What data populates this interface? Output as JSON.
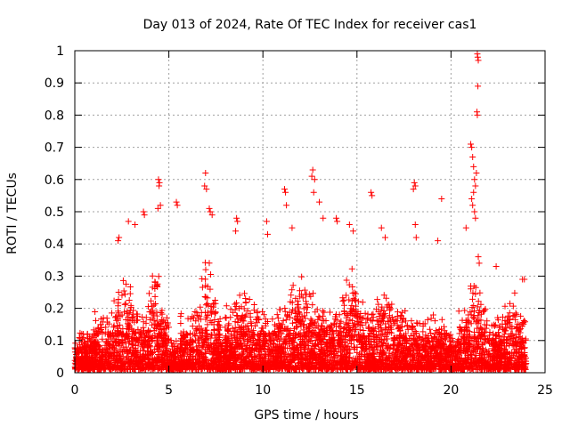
{
  "chart_data": {
    "type": "scatter",
    "title": "Day 013 of 2024, Rate Of TEC Index for receiver cas1",
    "xlabel": "GPS time / hours",
    "ylabel": "ROTI / TECUs",
    "xlim": [
      0,
      25
    ],
    "ylim": [
      0,
      1
    ],
    "xticks": [
      0,
      5,
      10,
      15,
      20,
      25
    ],
    "yticks": [
      0,
      0.1,
      0.2,
      0.3,
      0.4,
      0.5,
      0.6,
      0.7,
      0.8,
      0.9,
      1
    ],
    "grid": true,
    "marker": "plus",
    "marker_color": "#ff0000",
    "series": [
      {
        "points": [
          [
            4.45,
            0.6
          ],
          [
            4.5,
            0.59
          ],
          [
            4.48,
            0.58
          ],
          [
            4.55,
            0.52
          ],
          [
            4.42,
            0.51
          ],
          [
            5.4,
            0.53
          ],
          [
            5.45,
            0.52
          ],
          [
            3.65,
            0.5
          ],
          [
            3.7,
            0.49
          ],
          [
            2.35,
            0.42
          ],
          [
            2.3,
            0.41
          ],
          [
            2.85,
            0.47
          ],
          [
            3.2,
            0.46
          ],
          [
            6.95,
            0.62
          ],
          [
            6.9,
            0.58
          ],
          [
            7.0,
            0.57
          ],
          [
            7.15,
            0.51
          ],
          [
            7.2,
            0.5
          ],
          [
            7.3,
            0.49
          ],
          [
            8.6,
            0.48
          ],
          [
            8.65,
            0.47
          ],
          [
            8.55,
            0.44
          ],
          [
            10.2,
            0.47
          ],
          [
            10.25,
            0.43
          ],
          [
            11.15,
            0.57
          ],
          [
            11.2,
            0.56
          ],
          [
            11.25,
            0.52
          ],
          [
            11.55,
            0.45
          ],
          [
            12.65,
            0.63
          ],
          [
            12.6,
            0.61
          ],
          [
            12.75,
            0.6
          ],
          [
            12.7,
            0.56
          ],
          [
            13.0,
            0.53
          ],
          [
            13.2,
            0.48
          ],
          [
            13.9,
            0.48
          ],
          [
            13.95,
            0.47
          ],
          [
            14.6,
            0.46
          ],
          [
            14.8,
            0.44
          ],
          [
            15.75,
            0.56
          ],
          [
            15.8,
            0.55
          ],
          [
            16.3,
            0.45
          ],
          [
            16.5,
            0.42
          ],
          [
            18.05,
            0.59
          ],
          [
            18.1,
            0.58
          ],
          [
            18.0,
            0.57
          ],
          [
            18.1,
            0.46
          ],
          [
            18.15,
            0.42
          ],
          [
            19.5,
            0.54
          ],
          [
            19.3,
            0.41
          ],
          [
            20.8,
            0.45
          ],
          [
            21.05,
            0.71
          ],
          [
            21.1,
            0.7
          ],
          [
            21.15,
            0.67
          ],
          [
            21.2,
            0.64
          ],
          [
            21.25,
            0.6
          ],
          [
            21.3,
            0.58
          ],
          [
            21.35,
            0.62
          ],
          [
            21.2,
            0.56
          ],
          [
            21.1,
            0.54
          ],
          [
            21.15,
            0.52
          ],
          [
            21.25,
            0.5
          ],
          [
            21.3,
            0.48
          ],
          [
            21.4,
            0.99
          ],
          [
            21.42,
            0.98
          ],
          [
            21.45,
            0.97
          ],
          [
            21.43,
            0.89
          ],
          [
            21.38,
            0.81
          ],
          [
            21.4,
            0.8
          ],
          [
            21.45,
            0.36
          ],
          [
            21.5,
            0.34
          ],
          [
            22.4,
            0.33
          ],
          [
            23.8,
            0.29
          ],
          [
            23.9,
            0.29
          ]
        ]
      }
    ]
  }
}
